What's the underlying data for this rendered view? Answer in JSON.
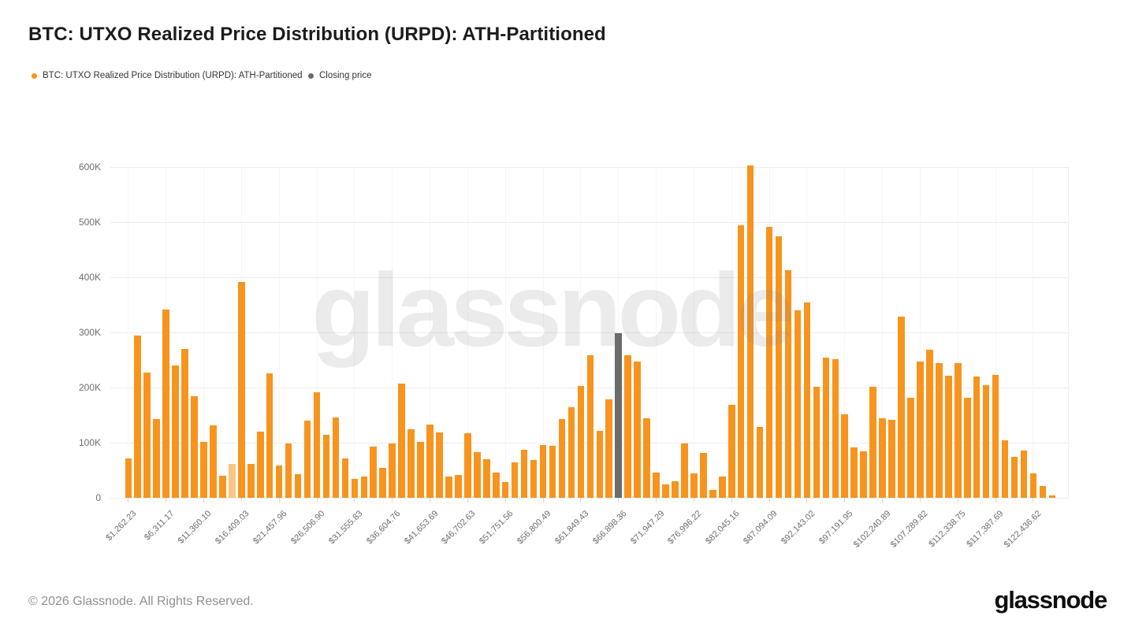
{
  "title": "BTC: UTXO Realized Price Distribution (URPD): ATH-Partitioned",
  "legend": {
    "series": {
      "label": "BTC: UTXO Realized Price Distribution (URPD): ATH-Partitioned",
      "color": "#F7941E"
    },
    "closing": {
      "label": "Closing price",
      "color": "#6B6B6B"
    }
  },
  "watermark": "glassnode",
  "footer": {
    "copyright": "© 2026 Glassnode. All Rights Reserved.",
    "brand": "glassnode"
  },
  "chart_data": {
    "type": "bar",
    "title": "BTC: UTXO Realized Price Distribution (URPD): ATH-Partitioned",
    "xlabel": "",
    "ylabel": "",
    "unit": "K (thousand BTC)",
    "ylim": [
      0,
      600
    ],
    "grid": "horizontal",
    "legend_position": "top-left",
    "y_ticks": [
      "0",
      "100K",
      "200K",
      "300K",
      "400K",
      "500K",
      "600K"
    ],
    "x_tick_labels": [
      "$1,262.23",
      "$6,311.17",
      "$11,360.10",
      "$16,409.03",
      "$21,457.96",
      "$26,506.90",
      "$31,555.83",
      "$36,604.76",
      "$41,653.69",
      "$46,702.63",
      "$51,751.56",
      "$56,800.49",
      "$61,849.43",
      "$66,898.36",
      "$71,947.29",
      "$76,996.22",
      "$82,045.16",
      "$87,094.09",
      "$92,143.02",
      "$97,191.95",
      "$102,240.89",
      "$107,289.82",
      "$112,338.75",
      "$117,387.69",
      "$122,436.62"
    ],
    "x_label_every_n_bars": 4,
    "values_thousands": [
      72,
      295,
      227,
      143,
      341,
      240,
      270,
      185,
      102,
      132,
      40,
      62,
      392,
      62,
      120,
      226,
      59,
      98,
      43,
      140,
      192,
      114,
      146,
      72,
      35,
      38,
      93,
      54,
      99,
      207,
      124,
      101,
      133,
      118,
      39,
      42,
      117,
      83,
      70,
      46,
      28,
      65,
      87,
      68,
      96,
      95,
      143,
      165,
      203,
      259,
      122,
      179,
      299,
      258,
      247,
      144,
      46,
      25,
      30,
      99,
      45,
      81,
      15,
      38,
      169,
      494,
      603,
      128,
      491,
      475,
      413,
      340,
      355,
      201,
      254,
      252,
      152,
      92,
      85,
      202,
      145,
      142,
      328,
      181,
      247,
      269,
      244,
      221,
      245,
      181,
      220,
      204,
      223,
      105,
      75,
      86,
      45,
      22,
      5
    ],
    "closing_price_bar_index": 52,
    "muted_bar_index": 11,
    "colors": {
      "bar": "#F7941E",
      "muted_bar": "#FAC584",
      "closing_bar": "#6B6B6B",
      "grid": "#ECECEC",
      "axis_text": "#6E6E6E"
    }
  }
}
